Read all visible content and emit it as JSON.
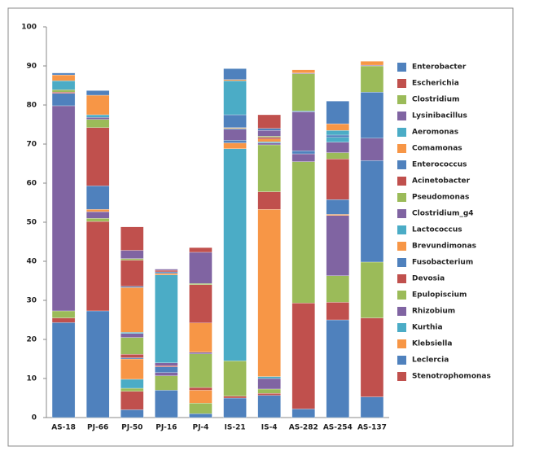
{
  "chart_data": {
    "type": "stacked_bar",
    "categories": [
      "AS-18",
      "PJ-66",
      "PJ-50",
      "PJ-16",
      "PJ-4",
      "IS-21",
      "IS-4",
      "AS-282",
      "AS-254",
      "AS-137"
    ],
    "ylim": [
      0,
      100
    ],
    "yticks": [
      0,
      10,
      20,
      30,
      40,
      50,
      60,
      70,
      80,
      90,
      100
    ],
    "grid": false,
    "legend": "right",
    "series": [
      {
        "name": "Enterobacter",
        "color": "#4f81bd",
        "values": [
          24.3,
          27.3,
          2,
          7,
          1,
          5,
          5.7,
          2.2,
          25,
          5.3
        ]
      },
      {
        "name": "Escherichia",
        "color": "#c0504d",
        "values": [
          1.2,
          22.9,
          4.7,
          0,
          0,
          0.5,
          0.5,
          27.1,
          4.5,
          20.2
        ]
      },
      {
        "name": "Clostridium",
        "color": "#9bbb59",
        "values": [
          1.8,
          0.8,
          0.8,
          3.7,
          2.7,
          9,
          1.1,
          36.2,
          6.8,
          14.3
        ]
      },
      {
        "name": "Lysinibacillus",
        "color": "#8064a2",
        "values": [
          52.5,
          1.7,
          0,
          0.8,
          0,
          0,
          2.7,
          2,
          15.4,
          0
        ]
      },
      {
        "name": "Aeromonas",
        "color": "#4bacc6",
        "values": [
          0,
          0,
          2.3,
          0,
          0,
          54.3,
          0.5,
          0,
          0,
          0
        ]
      },
      {
        "name": "Comamonas",
        "color": "#f79646",
        "values": [
          0,
          0.6,
          5.2,
          0,
          3.3,
          1.5,
          42.8,
          0,
          0.3,
          0
        ]
      },
      {
        "name": "Enterococcus",
        "color": "#4f81bd",
        "values": [
          3.2,
          6,
          0.3,
          1.5,
          0,
          0.7,
          0,
          0.8,
          3.8,
          26
        ]
      },
      {
        "name": "Acinetobacter",
        "color": "#c0504d",
        "values": [
          0.3,
          14.9,
          0.9,
          0.3,
          0.7,
          0,
          4.5,
          0,
          10.4,
          0
        ]
      },
      {
        "name": "Pseudomonas",
        "color": "#9bbb59",
        "values": [
          0.6,
          2.1,
          4.3,
          0,
          8.6,
          0,
          12,
          0,
          1.6,
          0
        ]
      },
      {
        "name": "Clostridium_g4",
        "color": "#8064a2",
        "values": [
          0,
          0.5,
          1,
          0.7,
          0.4,
          2.8,
          0.5,
          10,
          2.7,
          5.7
        ]
      },
      {
        "name": "Lactococcus",
        "color": "#4bacc6",
        "values": [
          2.3,
          0.7,
          0.3,
          22.5,
          0,
          0.2,
          0.3,
          0.2,
          1.2,
          0
        ]
      },
      {
        "name": "Brevundimonas",
        "color": "#f79646",
        "values": [
          1.5,
          5,
          11.5,
          0.4,
          7.5,
          0.2,
          0.7,
          0,
          0,
          0
        ]
      },
      {
        "name": "Fusobacterium",
        "color": "#4f81bd",
        "values": [
          0.5,
          1.2,
          0.3,
          0.4,
          0,
          3.3,
          0,
          0,
          0.6,
          11.8
        ]
      },
      {
        "name": "Devosia",
        "color": "#c0504d",
        "values": [
          0,
          0,
          6.7,
          0.4,
          9.8,
          0,
          0.4,
          0,
          0,
          0
        ]
      },
      {
        "name": "Epulopiscium",
        "color": "#9bbb59",
        "values": [
          0,
          0,
          0.4,
          0,
          0.3,
          0,
          0.3,
          9.5,
          0,
          6.7
        ]
      },
      {
        "name": "Rhizobium",
        "color": "#8064a2",
        "values": [
          0,
          0,
          2.1,
          0.3,
          8,
          0,
          1.5,
          0.2,
          0,
          0.2
        ]
      },
      {
        "name": "Kurthia",
        "color": "#4bacc6",
        "values": [
          0,
          0,
          0,
          0,
          0,
          8.7,
          0,
          0,
          1.2,
          0
        ]
      },
      {
        "name": "Klebsiella",
        "color": "#f79646",
        "values": [
          0,
          0,
          0,
          0,
          0,
          0.3,
          0,
          0.8,
          1.7,
          1
        ]
      },
      {
        "name": "Leclercia",
        "color": "#4f81bd",
        "values": [
          0,
          0,
          0,
          0,
          0,
          2.8,
          0.5,
          0,
          5.8,
          0
        ]
      },
      {
        "name": "Stenotrophomonas",
        "color": "#c0504d",
        "values": [
          0,
          0,
          6,
          0,
          1.2,
          0,
          3.5,
          0,
          0,
          0
        ]
      }
    ]
  }
}
